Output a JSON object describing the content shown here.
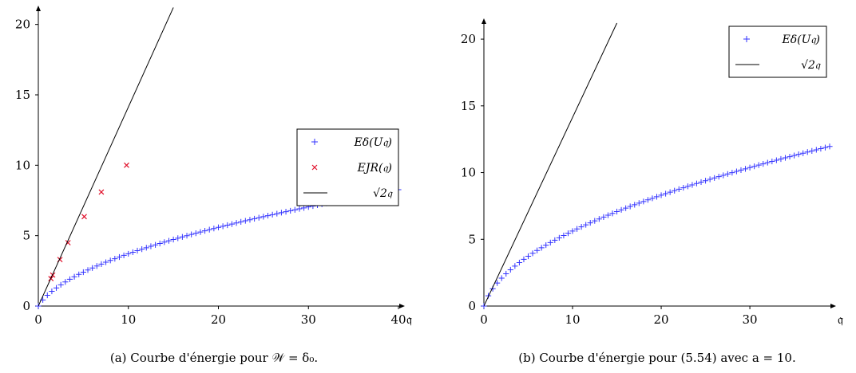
{
  "chart_data": [
    {
      "type": "scatter",
      "xlabel": "𝔮",
      "ylabel": "",
      "xlim": [
        0,
        40
      ],
      "ylim": [
        0,
        21
      ],
      "x_ticks": [
        "0",
        "10",
        "20",
        "30",
        "40"
      ],
      "y_ticks": [
        "0",
        "5",
        "10",
        "15",
        "20"
      ],
      "legend_position": "right-middle",
      "caption": "(a) Courbe d'énergie pour 𝒲 = δ₀.",
      "series": [
        {
          "name": "Eδ(U𝔮)",
          "marker": "plus",
          "color": "#3333ff",
          "model": "sqrt_curve",
          "x_start": 0,
          "x_end": 40,
          "n": 80,
          "A": 1.6,
          "B": 1.06,
          "D": 1.6
        },
        {
          "name": "EJR(𝔮)",
          "marker": "cross",
          "color": "#e0102a",
          "x": [
            1.4,
            1.6,
            2.4,
            3.3,
            5.1,
            7.0,
            9.8
          ],
          "y": [
            1.95,
            2.2,
            3.3,
            4.5,
            6.35,
            8.1,
            10.0
          ]
        },
        {
          "name": "√2𝔮",
          "marker": "line",
          "color": "#000000",
          "x": [
            0,
            15
          ],
          "y": [
            0,
            21.2
          ]
        }
      ]
    },
    {
      "type": "scatter",
      "xlabel": "𝔮",
      "ylabel": "",
      "xlim": [
        0,
        39
      ],
      "ylim": [
        0,
        21.2
      ],
      "x_ticks": [
        "0",
        "10",
        "20",
        "30"
      ],
      "y_ticks": [
        "0",
        "5",
        "10",
        "15",
        "20"
      ],
      "legend_position": "top-right",
      "caption": "(b) Courbe d'énergie pour (5.54) avec a = 10.",
      "series": [
        {
          "name": "Eδ(U𝔮)",
          "marker": "plus",
          "color": "#3333ff",
          "model": "sqrt_curve",
          "x_start": 0,
          "x_end": 39,
          "n": 78,
          "A": 1,
          "B": 2.14,
          "D": 1
        },
        {
          "name": "√2𝔮",
          "marker": "line",
          "color": "#000000",
          "x": [
            0,
            15
          ],
          "y": [
            0,
            21.2
          ]
        }
      ]
    }
  ]
}
